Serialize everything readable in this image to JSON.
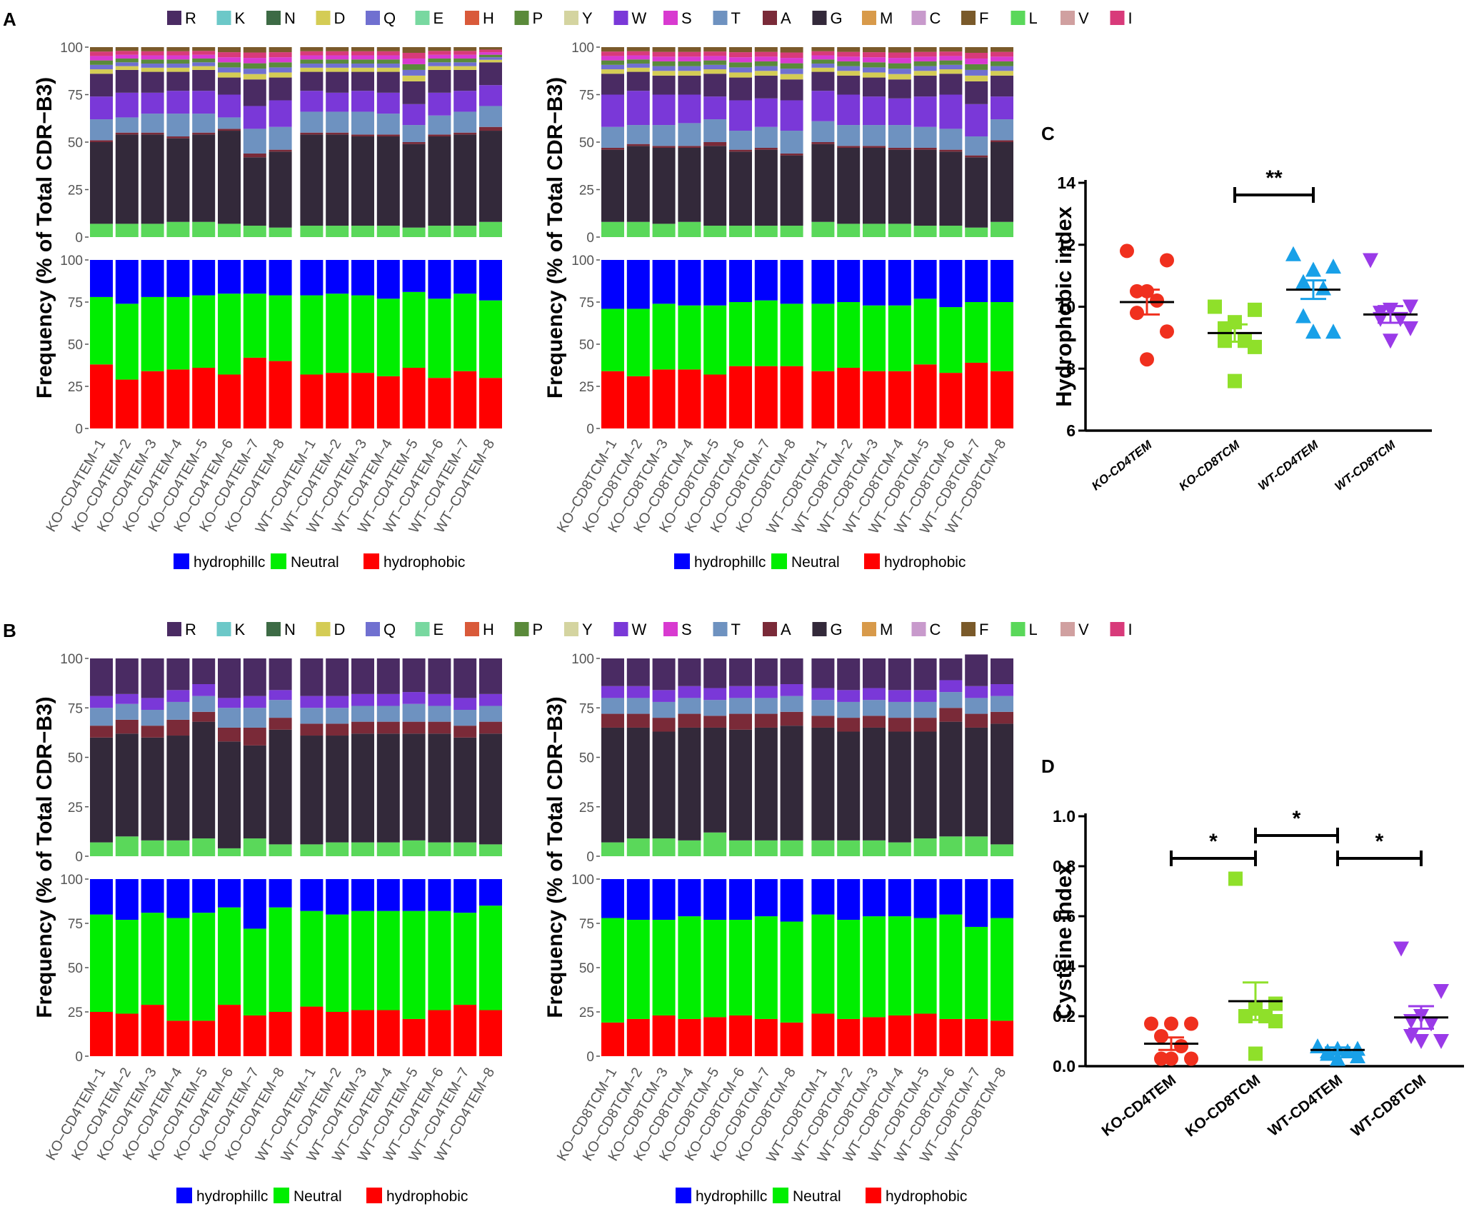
{
  "panels": {
    "A": "A",
    "B": "B",
    "C": "C",
    "D": "D"
  },
  "residue_legend": [
    {
      "label": "R",
      "color": "#4a2b63"
    },
    {
      "label": "K",
      "color": "#6cc8c8"
    },
    {
      "label": "N",
      "color": "#3d6b45"
    },
    {
      "label": "D",
      "color": "#d4cc55"
    },
    {
      "label": "Q",
      "color": "#7070d0"
    },
    {
      "label": "E",
      "color": "#78d8a0"
    },
    {
      "label": "H",
      "color": "#d95a3a"
    },
    {
      "label": "P",
      "color": "#5a8a3a"
    },
    {
      "label": "Y",
      "color": "#d4d4a0"
    },
    {
      "label": "W",
      "color": "#7a38d8"
    },
    {
      "label": "S",
      "color": "#d83ad0"
    },
    {
      "label": "T",
      "color": "#6e92c0"
    },
    {
      "label": "A",
      "color": "#7a2a38"
    },
    {
      "label": "G",
      "color": "#33293a"
    },
    {
      "label": "M",
      "color": "#d89a4a"
    },
    {
      "label": "C",
      "color": "#c89acc"
    },
    {
      "label": "F",
      "color": "#7a5a2a"
    },
    {
      "label": "L",
      "color": "#5ad85a"
    },
    {
      "label": "V",
      "color": "#d0a0a0"
    },
    {
      "label": "I",
      "color": "#d83a7a"
    }
  ],
  "hydro_legend": [
    {
      "label": "hydrophillc",
      "color": "#0000ff"
    },
    {
      "label": "Neutral",
      "color": "#00ee00"
    },
    {
      "label": "hydrophobic",
      "color": "#ff0000"
    }
  ],
  "ylabel_residue": "Frequency (% of Total CDR−B3)",
  "ylabel_hydro": "Frequency (% of Total CDR−B3)",
  "yticks": [
    "0",
    "25",
    "50",
    "75",
    "100"
  ],
  "chart_data": [
    {
      "panel": "A-left",
      "type": "stacked-bar",
      "categories": [
        "KO−CD4TEM−1",
        "KO−CD4TEM−2",
        "KO−CD4TEM−3",
        "KO−CD4TEM−4",
        "KO−CD4TEM−5",
        "KO−CD4TEM−6",
        "KO−CD4TEM−7",
        "KO−CD4TEM−8",
        "WT−CD4TEM−1",
        "WT−CD4TEM−2",
        "WT−CD4TEM−3",
        "WT−CD4TEM−4",
        "WT−CD4TEM−5",
        "WT−CD4TEM−6",
        "WT−CD4TEM−7",
        "WT−CD4TEM−8"
      ],
      "residue_stack": {
        "L": [
          7,
          7,
          7,
          8,
          8,
          7,
          6,
          5,
          6,
          6,
          6,
          6,
          5,
          6,
          6,
          8
        ],
        "G": [
          43,
          47,
          47,
          44,
          46,
          49,
          36,
          40,
          48,
          48,
          47,
          47,
          44,
          47,
          48,
          48
        ],
        "A": [
          1,
          1,
          1,
          1,
          1,
          1,
          2,
          1,
          1,
          1,
          1,
          1,
          1,
          1,
          1,
          2
        ],
        "T": [
          11,
          8,
          10,
          12,
          10,
          6,
          13,
          12,
          11,
          11,
          12,
          11,
          9,
          10,
          11,
          11
        ],
        "W": [
          12,
          13,
          11,
          12,
          12,
          12,
          12,
          14,
          11,
          10,
          11,
          11,
          11,
          12,
          11,
          11
        ],
        "R": [
          12,
          12,
          11,
          10,
          11,
          9,
          14,
          12,
          10,
          11,
          10,
          11,
          12,
          12,
          11,
          12
        ]
      },
      "hydrophobic": [
        38,
        29,
        34,
        35,
        36,
        32,
        42,
        40,
        32,
        33,
        33,
        31,
        36,
        30,
        34,
        30
      ],
      "neutral": [
        40,
        45,
        44,
        43,
        43,
        48,
        38,
        39,
        47,
        47,
        46,
        46,
        45,
        47,
        46,
        46
      ],
      "ylim": [
        0,
        100
      ]
    },
    {
      "panel": "A-right",
      "type": "stacked-bar",
      "categories": [
        "KO−CD8TCM−1",
        "KO−CD8TCM−2",
        "KO−CD8TCM−3",
        "KO−CD8TCM−4",
        "KO−CD8TCM−5",
        "KO−CD8TCM−6",
        "KO−CD8TCM−7",
        "KO−CD8TCM−8",
        "WT−CD8TCM−1",
        "WT−CD8TCM−2",
        "WT−CD8TCM−3",
        "WT−CD8TCM−4",
        "WT−CD8TCM−5",
        "WT−CD8TCM−6",
        "WT−CD8TCM−7",
        "WT−CD8TCM−8"
      ],
      "residue_stack": {
        "L": [
          8,
          8,
          7,
          8,
          6,
          6,
          6,
          6,
          8,
          7,
          7,
          7,
          6,
          6,
          5,
          8
        ],
        "G": [
          38,
          40,
          40,
          39,
          42,
          39,
          40,
          37,
          41,
          40,
          40,
          39,
          40,
          39,
          37,
          42
        ],
        "A": [
          1,
          1,
          1,
          1,
          2,
          1,
          1,
          1,
          1,
          1,
          1,
          1,
          1,
          1,
          1,
          1
        ],
        "T": [
          11,
          10,
          11,
          12,
          12,
          10,
          11,
          12,
          11,
          11,
          11,
          12,
          11,
          11,
          10,
          11
        ],
        "W": [
          17,
          18,
          16,
          15,
          12,
          16,
          15,
          16,
          16,
          16,
          15,
          14,
          16,
          18,
          17,
          12
        ],
        "R": [
          11,
          10,
          10,
          10,
          12,
          12,
          12,
          11,
          10,
          10,
          10,
          10,
          11,
          11,
          12,
          11
        ]
      },
      "hydrophobic": [
        34,
        31,
        35,
        35,
        32,
        37,
        37,
        37,
        34,
        36,
        34,
        34,
        38,
        33,
        39,
        34
      ],
      "neutral": [
        37,
        40,
        39,
        38,
        41,
        38,
        39,
        37,
        40,
        39,
        39,
        39,
        39,
        39,
        36,
        41
      ],
      "ylim": [
        0,
        100
      ]
    },
    {
      "panel": "B-left",
      "type": "stacked-bar",
      "categories": [
        "KO−CD4TEM−1",
        "KO−CD4TEM−2",
        "KO−CD4TEM−3",
        "KO−CD4TEM−4",
        "KO−CD4TEM−5",
        "KO−CD4TEM−6",
        "KO−CD4TEM−7",
        "KO−CD4TEM−8",
        "WT−CD4TEM−1",
        "WT−CD4TEM−2",
        "WT−CD4TEM−3",
        "WT−CD4TEM−4",
        "WT−CD4TEM−5",
        "WT−CD4TEM−6",
        "WT−CD4TEM−7",
        "WT−CD4TEM−8"
      ],
      "residue_stack": {
        "L": [
          7,
          10,
          8,
          8,
          9,
          4,
          9,
          6,
          6,
          7,
          7,
          7,
          8,
          7,
          7,
          6
        ],
        "G": [
          53,
          52,
          52,
          53,
          59,
          54,
          47,
          58,
          55,
          54,
          55,
          55,
          54,
          55,
          53,
          56
        ],
        "A": [
          6,
          7,
          6,
          8,
          5,
          7,
          9,
          6,
          6,
          6,
          6,
          6,
          6,
          6,
          6,
          6
        ],
        "T": [
          9,
          8,
          8,
          9,
          8,
          10,
          10,
          9,
          8,
          8,
          8,
          8,
          9,
          8,
          8,
          8
        ],
        "W": [
          6,
          5,
          6,
          6,
          6,
          5,
          6,
          5,
          6,
          6,
          6,
          6,
          6,
          6,
          6,
          6
        ],
        "R": [
          19,
          18,
          20,
          16,
          13,
          20,
          19,
          16,
          19,
          19,
          18,
          18,
          17,
          18,
          20,
          18
        ]
      },
      "hydrophobic": [
        25,
        24,
        29,
        20,
        20,
        29,
        23,
        25,
        28,
        25,
        26,
        26,
        21,
        26,
        29,
        26
      ],
      "neutral": [
        55,
        53,
        52,
        58,
        61,
        55,
        49,
        59,
        54,
        55,
        56,
        56,
        61,
        56,
        52,
        59
      ],
      "ylim": [
        0,
        100
      ]
    },
    {
      "panel": "B-right",
      "type": "stacked-bar",
      "categories": [
        "KO−CD8TCM−1",
        "KO−CD8TCM−2",
        "KO−CD8TCM−3",
        "KO−CD8TCM−4",
        "KO−CD8TCM−5",
        "KO−CD8TCM−6",
        "KO−CD8TCM−7",
        "KO−CD8TCM−8",
        "WT−CD8TCM−1",
        "WT−CD8TCM−2",
        "WT−CD8TCM−3",
        "WT−CD8TCM−4",
        "WT−CD8TCM−5",
        "WT−CD8TCM−6",
        "WT−CD8TCM−7",
        "WT−CD8TCM−8"
      ],
      "residue_stack": {
        "L": [
          7,
          9,
          9,
          8,
          12,
          8,
          8,
          8,
          8,
          8,
          8,
          7,
          9,
          10,
          10,
          6
        ],
        "G": [
          58,
          56,
          54,
          57,
          53,
          56,
          57,
          58,
          57,
          55,
          57,
          56,
          54,
          58,
          55,
          61
        ],
        "A": [
          7,
          7,
          7,
          7,
          6,
          8,
          7,
          7,
          6,
          7,
          6,
          7,
          7,
          7,
          7,
          6
        ],
        "T": [
          8,
          8,
          8,
          8,
          8,
          8,
          8,
          8,
          8,
          8,
          8,
          8,
          8,
          8,
          8,
          8
        ],
        "W": [
          6,
          6,
          6,
          6,
          6,
          6,
          6,
          6,
          6,
          6,
          6,
          6,
          6,
          6,
          6,
          6
        ],
        "R": [
          14,
          14,
          16,
          14,
          15,
          14,
          14,
          13,
          15,
          16,
          15,
          16,
          16,
          11,
          16,
          13
        ]
      },
      "hydrophobic": [
        19,
        21,
        23,
        21,
        22,
        23,
        21,
        19,
        24,
        21,
        22,
        23,
        24,
        21,
        21,
        20
      ],
      "neutral": [
        59,
        56,
        54,
        58,
        55,
        54,
        58,
        57,
        56,
        56,
        57,
        56,
        54,
        59,
        52,
        58
      ],
      "ylim": [
        0,
        100
      ]
    },
    {
      "panel": "C",
      "type": "scatter",
      "ylabel": "Hydrophobic index",
      "categories": [
        "KO-CD4TEM",
        "KO-CD8TCM",
        "WT-CD4TEM",
        "WT-CD8TCM"
      ],
      "yticks": [
        "6",
        "8",
        "10",
        "12",
        "14"
      ],
      "ylim": [
        6,
        14
      ],
      "series": [
        {
          "name": "KO-CD4TEM",
          "values": [
            11.8,
            11.5,
            10.5,
            10.5,
            10.2,
            9.8,
            9.2,
            8.3
          ],
          "mean": 10.15,
          "sem": 0.4
        },
        {
          "name": "KO-CD8TCM",
          "values": [
            10.0,
            9.9,
            9.5,
            9.3,
            8.9,
            8.9,
            8.7,
            7.6
          ],
          "mean": 9.15,
          "sem": 0.28
        },
        {
          "name": "WT-CD4TEM",
          "values": [
            11.7,
            11.3,
            11.2,
            10.8,
            10.6,
            9.7,
            9.2,
            9.2
          ],
          "mean": 10.55,
          "sem": 0.3
        },
        {
          "name": "WT-CD8TCM",
          "values": [
            11.5,
            10.0,
            9.9,
            9.8,
            9.6,
            9.6,
            9.3,
            8.9
          ],
          "mean": 9.75,
          "sem": 0.27
        }
      ],
      "significance": [
        {
          "from": "KO-CD8TCM",
          "to": "WT-CD4TEM",
          "label": "**"
        }
      ]
    },
    {
      "panel": "D",
      "type": "scatter",
      "ylabel": "Cysteine index",
      "categories": [
        "KO-CD4TEM",
        "KO-CD8TCM",
        "WT-CD4TEM",
        "WT-CD8TCM"
      ],
      "yticks": [
        "0.0",
        "0.2",
        "0.4",
        "0.6",
        "0.8",
        "1.0"
      ],
      "ylim": [
        0,
        1.0
      ],
      "series": [
        {
          "name": "KO-CD4TEM",
          "values": [
            0.17,
            0.17,
            0.17,
            0.12,
            0.08,
            0.03,
            0.03,
            0.03
          ],
          "mean": 0.09,
          "sem": 0.025
        },
        {
          "name": "KO-CD8TCM",
          "values": [
            0.75,
            0.25,
            0.23,
            0.2,
            0.2,
            0.2,
            0.18,
            0.05
          ],
          "mean": 0.26,
          "sem": 0.075
        },
        {
          "name": "WT-CD4TEM",
          "values": [
            0.08,
            0.07,
            0.07,
            0.06,
            0.06,
            0.05,
            0.04,
            0.03
          ],
          "mean": 0.065,
          "sem": 0.01
        },
        {
          "name": "WT-CD8TCM",
          "values": [
            0.47,
            0.3,
            0.2,
            0.18,
            0.17,
            0.12,
            0.1,
            0.1
          ],
          "mean": 0.195,
          "sem": 0.045
        }
      ],
      "significance": [
        {
          "from": "KO-CD4TEM",
          "to": "KO-CD8TCM",
          "label": "*"
        },
        {
          "from": "KO-CD8TCM",
          "to": "WT-CD4TEM",
          "label": "*"
        },
        {
          "from": "WT-CD4TEM",
          "to": "WT-CD8TCM",
          "label": "*"
        }
      ]
    }
  ],
  "colors": {
    "KO-CD4TEM": "#f0301e",
    "KO-CD8TCM": "#8fe02a",
    "WT-CD4TEM": "#18a0e8",
    "WT-CD8TCM": "#9a3ae8",
    "other": "#d8d8d8"
  }
}
